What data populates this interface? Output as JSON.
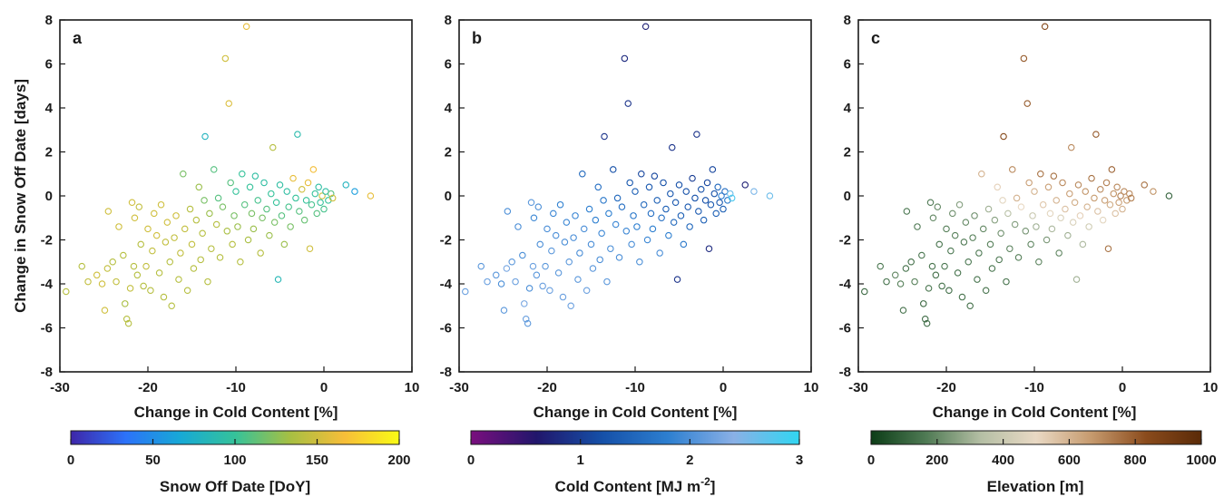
{
  "chart_data": [
    {
      "type": "scatter",
      "panel": "a",
      "xlabel": "Change in Cold Content [%]",
      "ylabel": "Change in Snow Off Date [days]",
      "xlim": [
        -30,
        10
      ],
      "ylim": [
        -8,
        8
      ],
      "xticks": [
        "-30",
        "-20",
        "-10",
        "0",
        "10"
      ],
      "yticks": [
        "8",
        "6",
        "4",
        "2",
        "0",
        "-2",
        "-4",
        "-6",
        "-8"
      ],
      "marker": "open circle",
      "color_variable": "Snow Off Date [DoY]",
      "colorbar": {
        "label": "Snow Off Date [DoY]",
        "range": [
          0,
          200
        ],
        "ticks": [
          "0",
          "50",
          "100",
          "150",
          "200"
        ],
        "colormap": "parula",
        "colors": [
          "#3e26a8",
          "#2c72f9",
          "#17a9d6",
          "#35c29a",
          "#a6bf43",
          "#f7be39",
          "#f9fb15"
        ]
      },
      "grid": false
    },
    {
      "type": "scatter",
      "panel": "b",
      "xlabel": "Change in Cold Content [%]",
      "xlim": [
        -30,
        10
      ],
      "ylim": [
        -8,
        8
      ],
      "xticks": [
        "-30",
        "-20",
        "-10",
        "0",
        "10"
      ],
      "yticks": [
        "8",
        "6",
        "4",
        "2",
        "0",
        "-2",
        "-4",
        "-6",
        "-8"
      ],
      "marker": "open circle",
      "color_variable": "Cold Content [MJ m-2]",
      "colorbar": {
        "label_main": "Cold Content [MJ m",
        "label_sup": "-2",
        "label_end": "]",
        "range": [
          0,
          3
        ],
        "ticks": [
          "0",
          "1",
          "2",
          "3"
        ],
        "colormap": "purple-blue-cyan",
        "colors": [
          "#7a0f7e",
          "#21166b",
          "#1550a8",
          "#2d7fd0",
          "#8ab0e6",
          "#30d6f2"
        ]
      },
      "grid": false
    },
    {
      "type": "scatter",
      "panel": "c",
      "xlabel": "Change in Cold Content [%]",
      "xlim": [
        -30,
        10
      ],
      "ylim": [
        -8,
        8
      ],
      "xticks": [
        "-30",
        "-20",
        "-10",
        "0",
        "10"
      ],
      "yticks": [
        "8",
        "6",
        "4",
        "2",
        "0",
        "-2",
        "-4",
        "-6",
        "-8"
      ],
      "marker": "open circle",
      "color_variable": "Elevation [m]",
      "colorbar": {
        "label": "Elevation [m]",
        "range": [
          0,
          1000
        ],
        "ticks": [
          "0",
          "200",
          "400",
          "600",
          "800",
          "1000"
        ],
        "colormap": "green-beige-brown",
        "colors": [
          "#0c3d17",
          "#4f7a54",
          "#b5bfa5",
          "#e9d9c4",
          "#c69a6e",
          "#8a4b1c",
          "#5a2a07"
        ]
      },
      "grid": false
    }
  ],
  "points": [
    {
      "x": -29.3,
      "y": -4.35,
      "v": [
        140,
        2.2,
        120
      ]
    },
    {
      "x": -27.5,
      "y": -3.2,
      "v": [
        140,
        2.1,
        160
      ]
    },
    {
      "x": -26.8,
      "y": -3.9,
      "v": [
        145,
        2.2,
        150
      ]
    },
    {
      "x": -25.8,
      "y": -3.6,
      "v": [
        150,
        2.1,
        200
      ]
    },
    {
      "x": -25.2,
      "y": -4.0,
      "v": [
        150,
        2.0,
        180
      ]
    },
    {
      "x": -24.9,
      "y": -5.2,
      "v": [
        150,
        2.1,
        150
      ]
    },
    {
      "x": -24.6,
      "y": -3.3,
      "v": [
        145,
        2.3,
        150
      ]
    },
    {
      "x": -24.5,
      "y": -0.7,
      "v": [
        150,
        2.0,
        160
      ]
    },
    {
      "x": -24.0,
      "y": -3.0,
      "v": [
        140,
        2.1,
        140
      ]
    },
    {
      "x": -23.6,
      "y": -3.9,
      "v": [
        145,
        2.2,
        180
      ]
    },
    {
      "x": -23.3,
      "y": -1.4,
      "v": [
        150,
        2.0,
        170
      ]
    },
    {
      "x": -22.8,
      "y": -2.7,
      "v": [
        140,
        2.0,
        160
      ]
    },
    {
      "x": -22.6,
      "y": -4.9,
      "v": [
        135,
        2.3,
        120
      ]
    },
    {
      "x": -22.4,
      "y": -5.6,
      "v": [
        140,
        2.2,
        130
      ]
    },
    {
      "x": -22.2,
      "y": -5.8,
      "v": [
        140,
        2.1,
        130
      ]
    },
    {
      "x": -22.0,
      "y": -4.2,
      "v": [
        145,
        2.0,
        160
      ]
    },
    {
      "x": -21.8,
      "y": -0.3,
      "v": [
        150,
        2.1,
        170
      ]
    },
    {
      "x": -21.6,
      "y": -3.2,
      "v": [
        140,
        2.2,
        150
      ]
    },
    {
      "x": -21.5,
      "y": -1.0,
      "v": [
        150,
        1.9,
        200
      ]
    },
    {
      "x": -21.2,
      "y": -3.6,
      "v": [
        140,
        2.1,
        140
      ]
    },
    {
      "x": -21.0,
      "y": -0.5,
      "v": [
        145,
        2.0,
        200
      ]
    },
    {
      "x": -20.8,
      "y": -2.2,
      "v": [
        140,
        2.0,
        150
      ]
    },
    {
      "x": -20.5,
      "y": -4.1,
      "v": [
        140,
        2.2,
        150
      ]
    },
    {
      "x": -20.2,
      "y": -3.2,
      "v": [
        145,
        2.1,
        160
      ]
    },
    {
      "x": -20.0,
      "y": -1.5,
      "v": [
        150,
        2.0,
        180
      ]
    },
    {
      "x": -19.7,
      "y": -4.3,
      "v": [
        140,
        2.2,
        130
      ]
    },
    {
      "x": -19.5,
      "y": -2.5,
      "v": [
        145,
        2.1,
        160
      ]
    },
    {
      "x": -19.3,
      "y": -0.8,
      "v": [
        150,
        1.9,
        220
      ]
    },
    {
      "x": -19.0,
      "y": -1.8,
      "v": [
        150,
        2.0,
        180
      ]
    },
    {
      "x": -18.7,
      "y": -3.5,
      "v": [
        140,
        2.1,
        150
      ]
    },
    {
      "x": -18.5,
      "y": -0.4,
      "v": [
        150,
        1.8,
        250
      ]
    },
    {
      "x": -18.2,
      "y": -4.6,
      "v": [
        140,
        2.2,
        150
      ]
    },
    {
      "x": -18.0,
      "y": -2.1,
      "v": [
        145,
        2.0,
        170
      ]
    },
    {
      "x": -17.8,
      "y": -1.2,
      "v": [
        150,
        1.9,
        200
      ]
    },
    {
      "x": -17.5,
      "y": -3.0,
      "v": [
        140,
        2.1,
        160
      ]
    },
    {
      "x": -17.3,
      "y": -5.0,
      "v": [
        140,
        2.2,
        140
      ]
    },
    {
      "x": -17.0,
      "y": -1.9,
      "v": [
        145,
        2.0,
        180
      ]
    },
    {
      "x": -16.8,
      "y": -0.9,
      "v": [
        150,
        1.9,
        220
      ]
    },
    {
      "x": -16.5,
      "y": -3.8,
      "v": [
        140,
        2.1,
        150
      ]
    },
    {
      "x": -16.3,
      "y": -2.6,
      "v": [
        145,
        2.0,
        170
      ]
    },
    {
      "x": -16.0,
      "y": 1.0,
      "v": [
        120,
        1.5,
        600
      ]
    },
    {
      "x": -15.8,
      "y": -1.5,
      "v": [
        145,
        2.0,
        200
      ]
    },
    {
      "x": -15.5,
      "y": -4.3,
      "v": [
        140,
        2.2,
        150
      ]
    },
    {
      "x": -15.2,
      "y": -0.6,
      "v": [
        140,
        1.8,
        300
      ]
    },
    {
      "x": -15.0,
      "y": -2.2,
      "v": [
        145,
        2.0,
        180
      ]
    },
    {
      "x": -14.8,
      "y": -3.3,
      "v": [
        140,
        2.1,
        160
      ]
    },
    {
      "x": -14.5,
      "y": -1.1,
      "v": [
        140,
        1.8,
        260
      ]
    },
    {
      "x": -14.2,
      "y": 0.4,
      "v": [
        130,
        1.6,
        520
      ]
    },
    {
      "x": -14.0,
      "y": -2.9,
      "v": [
        140,
        2.0,
        170
      ]
    },
    {
      "x": -13.8,
      "y": -1.7,
      "v": [
        140,
        1.9,
        220
      ]
    },
    {
      "x": -13.6,
      "y": -0.2,
      "v": [
        120,
        1.7,
        480
      ]
    },
    {
      "x": -13.5,
      "y": 2.7,
      "v": [
        80,
        0.9,
        850
      ]
    },
    {
      "x": -13.2,
      "y": -3.9,
      "v": [
        140,
        2.1,
        150
      ]
    },
    {
      "x": -13.0,
      "y": -0.8,
      "v": [
        130,
        1.8,
        350
      ]
    },
    {
      "x": -12.8,
      "y": -2.4,
      "v": [
        140,
        2.0,
        190
      ]
    },
    {
      "x": -12.5,
      "y": 1.2,
      "v": [
        110,
        1.2,
        700
      ]
    },
    {
      "x": -12.2,
      "y": -1.3,
      "v": [
        140,
        1.9,
        250
      ]
    },
    {
      "x": -12.0,
      "y": -0.1,
      "v": [
        110,
        1.5,
        600
      ]
    },
    {
      "x": -11.8,
      "y": -2.8,
      "v": [
        140,
        2.0,
        180
      ]
    },
    {
      "x": -11.5,
      "y": -0.5,
      "v": [
        120,
        1.6,
        500
      ]
    },
    {
      "x": -11.2,
      "y": 6.25,
      "v": [
        150,
        0.8,
        800
      ]
    },
    {
      "x": -11.0,
      "y": -1.6,
      "v": [
        135,
        1.9,
        230
      ]
    },
    {
      "x": -10.8,
      "y": 4.2,
      "v": [
        155,
        0.9,
        800
      ]
    },
    {
      "x": -10.6,
      "y": 0.6,
      "v": [
        110,
        1.3,
        650
      ]
    },
    {
      "x": -10.4,
      "y": -2.2,
      "v": [
        140,
        2.0,
        200
      ]
    },
    {
      "x": -10.2,
      "y": -0.9,
      "v": [
        120,
        1.7,
        400
      ]
    },
    {
      "x": -10.0,
      "y": 0.2,
      "v": [
        100,
        1.4,
        600
      ]
    },
    {
      "x": -9.8,
      "y": -1.4,
      "v": [
        130,
        1.8,
        300
      ]
    },
    {
      "x": -9.5,
      "y": -3.0,
      "v": [
        140,
        2.0,
        190
      ]
    },
    {
      "x": -9.3,
      "y": 1.0,
      "v": [
        100,
        1.1,
        750
      ]
    },
    {
      "x": -9.0,
      "y": -0.4,
      "v": [
        110,
        1.5,
        550
      ]
    },
    {
      "x": -8.8,
      "y": 7.7,
      "v": [
        160,
        0.7,
        850
      ]
    },
    {
      "x": -8.6,
      "y": -2.0,
      "v": [
        135,
        1.9,
        240
      ]
    },
    {
      "x": -8.4,
      "y": 0.4,
      "v": [
        100,
        1.3,
        650
      ]
    },
    {
      "x": -8.2,
      "y": -0.8,
      "v": [
        120,
        1.6,
        480
      ]
    },
    {
      "x": -8.0,
      "y": -1.5,
      "v": [
        130,
        1.8,
        320
      ]
    },
    {
      "x": -7.8,
      "y": 0.9,
      "v": [
        95,
        1.1,
        750
      ]
    },
    {
      "x": -7.5,
      "y": -0.2,
      "v": [
        105,
        1.4,
        600
      ]
    },
    {
      "x": -7.2,
      "y": -2.6,
      "v": [
        140,
        2.0,
        200
      ]
    },
    {
      "x": -7.0,
      "y": -1.0,
      "v": [
        120,
        1.6,
        450
      ]
    },
    {
      "x": -6.8,
      "y": 0.6,
      "v": [
        95,
        1.2,
        700
      ]
    },
    {
      "x": -6.5,
      "y": -0.6,
      "v": [
        110,
        1.4,
        560
      ]
    },
    {
      "x": -6.2,
      "y": -1.8,
      "v": [
        130,
        1.8,
        300
      ]
    },
    {
      "x": -6.0,
      "y": 0.1,
      "v": [
        100,
        1.3,
        650
      ]
    },
    {
      "x": -5.8,
      "y": 2.2,
      "v": [
        140,
        0.9,
        700
      ]
    },
    {
      "x": -5.6,
      "y": -1.2,
      "v": [
        120,
        1.5,
        450
      ]
    },
    {
      "x": -5.4,
      "y": -0.3,
      "v": [
        100,
        1.3,
        620
      ]
    },
    {
      "x": -5.2,
      "y": -3.8,
      "v": [
        85,
        0.9,
        300
      ]
    },
    {
      "x": -5.0,
      "y": 0.5,
      "v": [
        95,
        1.2,
        700
      ]
    },
    {
      "x": -4.8,
      "y": -0.9,
      "v": [
        110,
        1.4,
        520
      ]
    },
    {
      "x": -4.5,
      "y": -2.2,
      "v": [
        130,
        1.7,
        320
      ]
    },
    {
      "x": -4.2,
      "y": 0.2,
      "v": [
        95,
        1.2,
        680
      ]
    },
    {
      "x": -4.0,
      "y": -0.5,
      "v": [
        105,
        1.3,
        600
      ]
    },
    {
      "x": -3.8,
      "y": -1.4,
      "v": [
        120,
        1.5,
        420
      ]
    },
    {
      "x": -3.5,
      "y": 0.8,
      "v": [
        160,
        1.0,
        750
      ]
    },
    {
      "x": -3.2,
      "y": -0.1,
      "v": [
        100,
        1.2,
        660
      ]
    },
    {
      "x": -3.0,
      "y": 2.8,
      "v": [
        90,
        0.9,
        800
      ]
    },
    {
      "x": -2.8,
      "y": -0.7,
      "v": [
        110,
        1.3,
        560
      ]
    },
    {
      "x": -2.5,
      "y": 0.3,
      "v": [
        150,
        1.2,
        700
      ]
    },
    {
      "x": -2.2,
      "y": -1.1,
      "v": [
        115,
        1.4,
        480
      ]
    },
    {
      "x": -2.0,
      "y": -0.2,
      "v": [
        100,
        1.2,
        650
      ]
    },
    {
      "x": -1.8,
      "y": 0.6,
      "v": [
        160,
        1.1,
        720
      ]
    },
    {
      "x": -1.6,
      "y": -2.4,
      "v": [
        150,
        0.8,
        750
      ]
    },
    {
      "x": -1.4,
      "y": -0.4,
      "v": [
        105,
        1.3,
        620
      ]
    },
    {
      "x": -1.2,
      "y": 1.2,
      "v": [
        165,
        1.1,
        780
      ]
    },
    {
      "x": -1.0,
      "y": 0.1,
      "v": [
        100,
        1.2,
        680
      ]
    },
    {
      "x": -0.8,
      "y": -0.8,
      "v": [
        110,
        1.4,
        560
      ]
    },
    {
      "x": -0.6,
      "y": 0.4,
      "v": [
        95,
        1.5,
        700
      ]
    },
    {
      "x": -0.4,
      "y": -0.3,
      "v": [
        100,
        1.3,
        650
      ]
    },
    {
      "x": -0.2,
      "y": 0.0,
      "v": [
        150,
        1.8,
        720
      ]
    },
    {
      "x": 0.0,
      "y": -0.6,
      "v": [
        105,
        1.4,
        600
      ]
    },
    {
      "x": 0.2,
      "y": 0.2,
      "v": [
        95,
        1.6,
        700
      ]
    },
    {
      "x": 0.5,
      "y": -0.2,
      "v": [
        100,
        1.7,
        660
      ]
    },
    {
      "x": 0.8,
      "y": 0.1,
      "v": [
        110,
        2.6,
        700
      ]
    },
    {
      "x": 1.0,
      "y": -0.1,
      "v": [
        150,
        2.8,
        720
      ]
    },
    {
      "x": 2.5,
      "y": 0.5,
      "v": [
        80,
        0.7,
        750
      ]
    },
    {
      "x": 3.5,
      "y": 0.2,
      "v": [
        60,
        2.5,
        680
      ]
    },
    {
      "x": 5.3,
      "y": 0.0,
      "v": [
        160,
        2.6,
        100
      ]
    }
  ]
}
